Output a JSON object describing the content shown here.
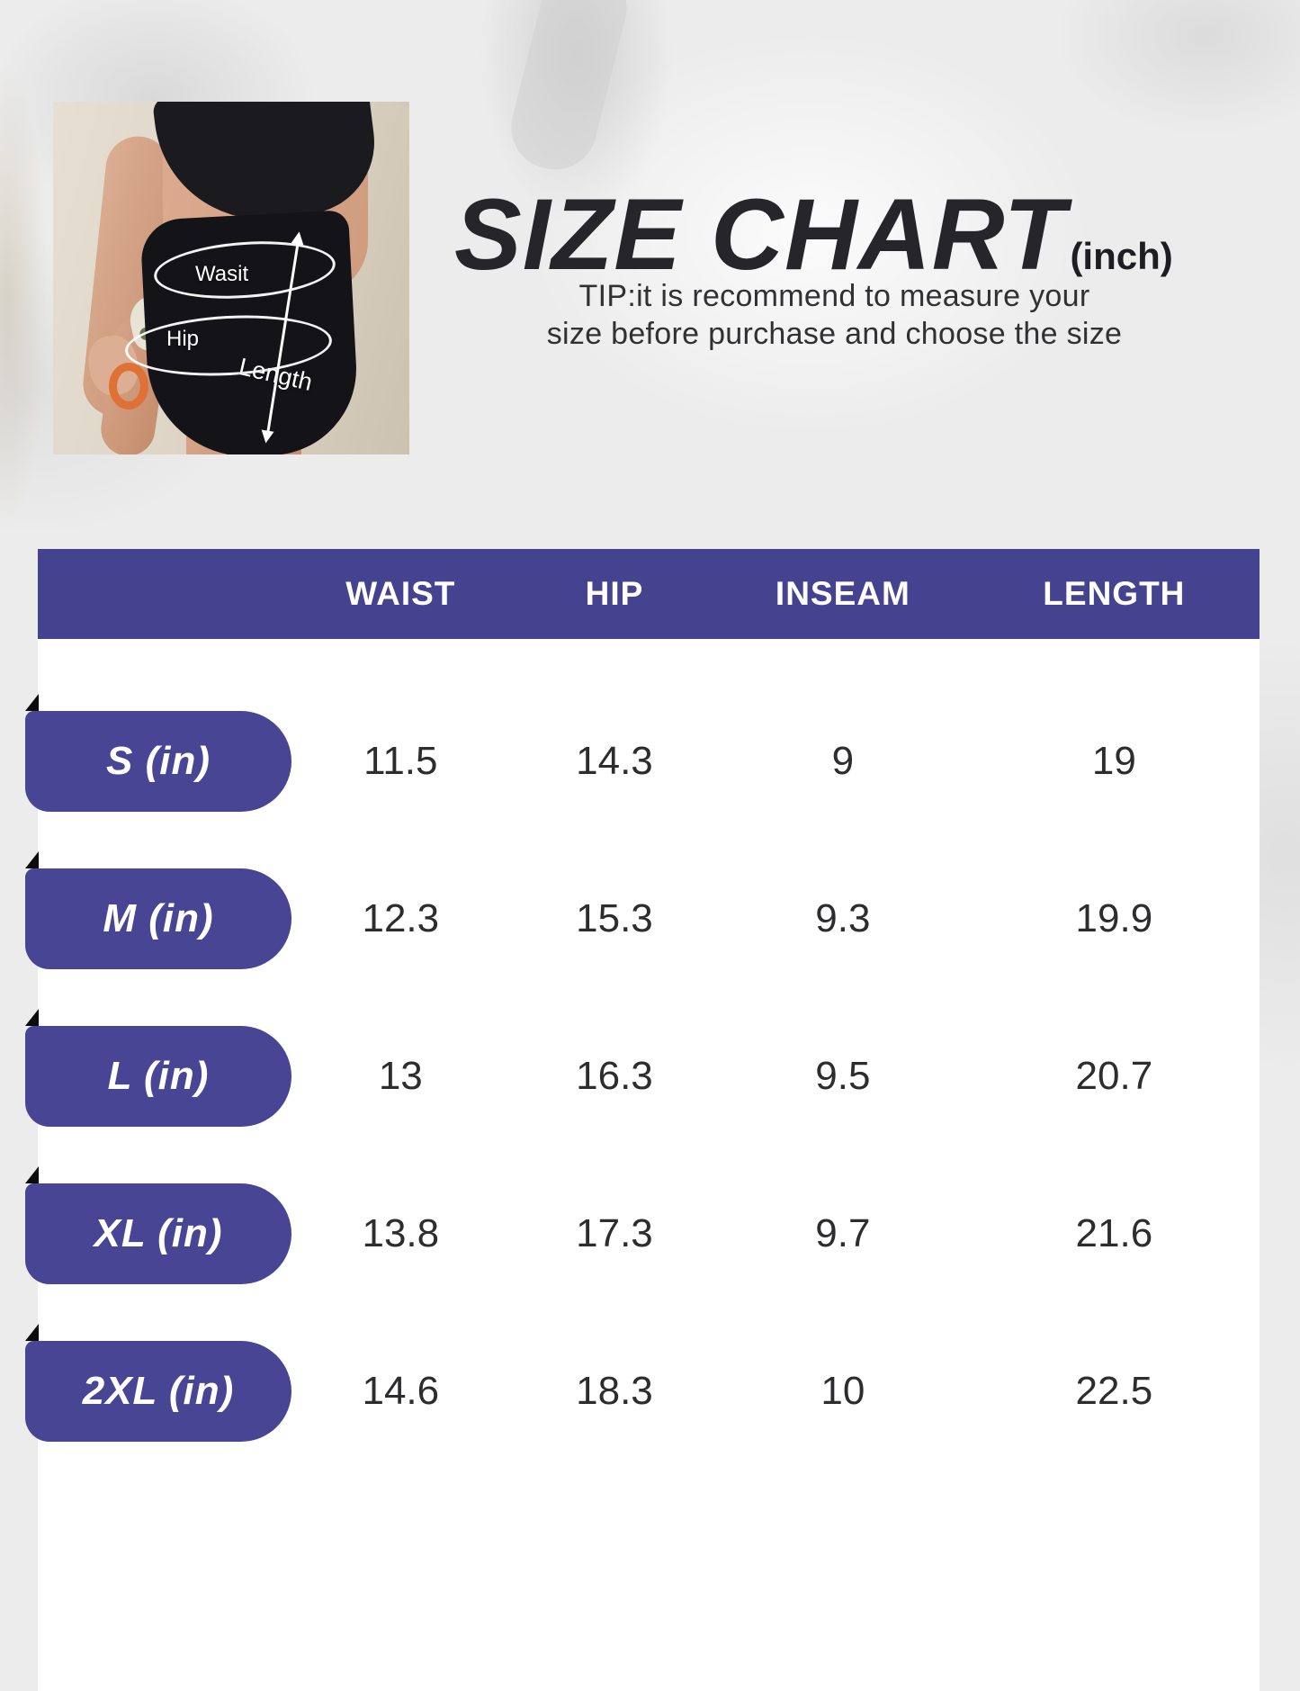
{
  "page": {
    "title": "SIZE CHART",
    "title_unit": "(inch)",
    "tip_line1": "TIP:it is recommend to measure your",
    "tip_line2": "size before purchase and choose the size"
  },
  "photo": {
    "labels": {
      "waist": "Wasit",
      "hip": "Hip",
      "length": "Length"
    }
  },
  "size_table": {
    "columns": [
      "WAIST",
      "HIP",
      "INSEAM",
      "LENGTH"
    ],
    "rows": [
      {
        "size": "S (in)",
        "values": [
          "11.5",
          "14.3",
          "9",
          "19"
        ]
      },
      {
        "size": "M (in)",
        "values": [
          "12.3",
          "15.3",
          "9.3",
          "19.9"
        ]
      },
      {
        "size": "L (in)",
        "values": [
          "13",
          "16.3",
          "9.5",
          "20.7"
        ]
      },
      {
        "size": "XL (in)",
        "values": [
          "13.8",
          "17.3",
          "9.7",
          "21.6"
        ]
      },
      {
        "size": "2XL (in)",
        "values": [
          "14.6",
          "18.3",
          "10",
          "22.5"
        ]
      }
    ]
  },
  "colors": {
    "accent_header": "#454390",
    "accent_badge": "#474594",
    "fold": "#0c0c0c",
    "panel": "#ffffff",
    "text_dark": "#2d2d2f",
    "background": "#ececec",
    "photo_background": "#dcd3c4"
  }
}
